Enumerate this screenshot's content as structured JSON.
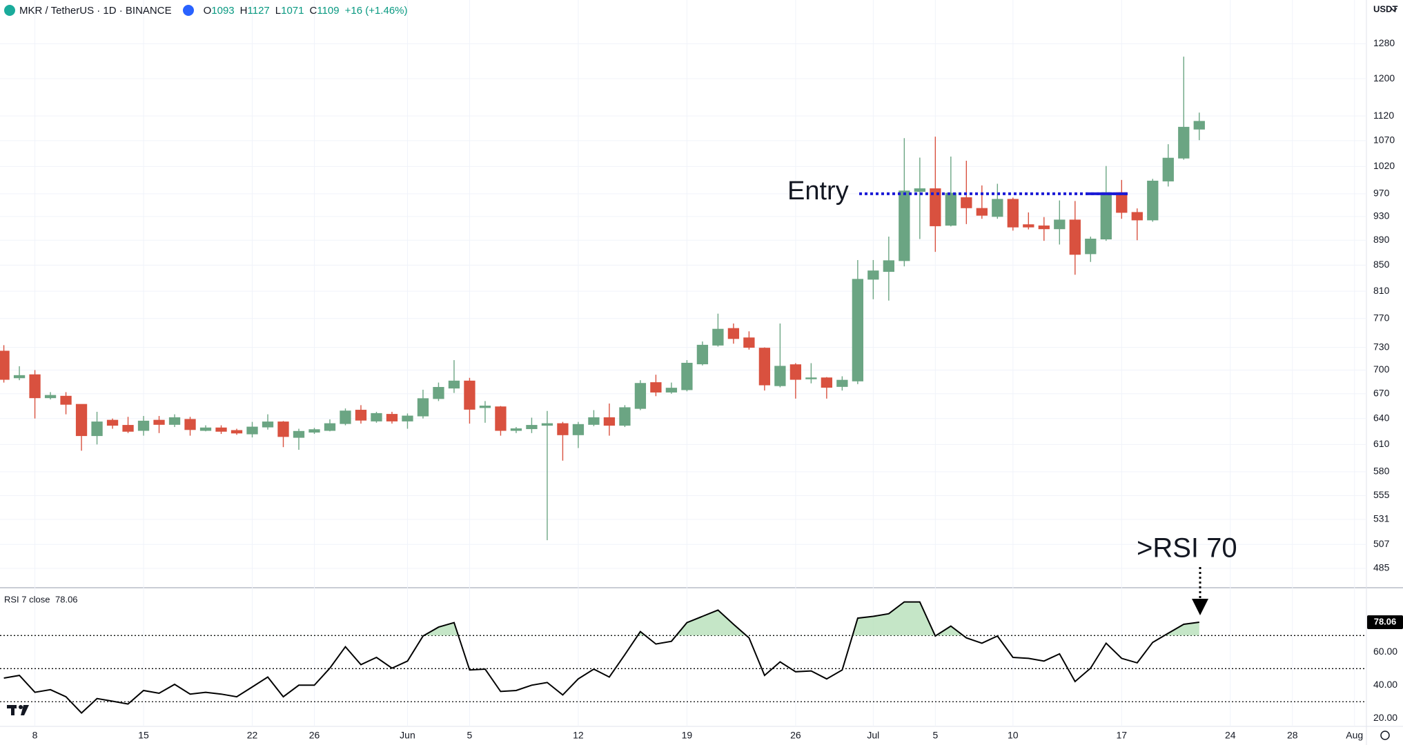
{
  "header": {
    "ohlc_labels": [
      "O",
      "H",
      "L",
      "C"
    ],
    "change": "+16 (+1.46%)",
    "currency": "USDT"
  },
  "chart_data": [
    {
      "type": "candlestick",
      "title": "MKR / TetherUS · 1D · BINANCE",
      "log": true,
      "grid": true,
      "up_color": "#6ba583",
      "down_color": "#d9513f",
      "categories": [
        null,
        null,
        "8",
        null,
        null,
        null,
        null,
        null,
        null,
        "15",
        null,
        null,
        null,
        null,
        null,
        null,
        "22",
        null,
        null,
        null,
        "26",
        null,
        null,
        null,
        null,
        null,
        "Jun",
        null,
        null,
        null,
        "5",
        null,
        null,
        null,
        null,
        null,
        null,
        "12",
        null,
        null,
        null,
        null,
        null,
        null,
        "19",
        null,
        null,
        null,
        null,
        null,
        null,
        "26",
        null,
        null,
        null,
        null,
        "Jul",
        null,
        null,
        null,
        "5",
        null,
        null,
        null,
        null,
        "10",
        null,
        null,
        null,
        null,
        null,
        null,
        "17",
        null,
        null,
        null,
        null,
        null,
        null,
        "24",
        null,
        null,
        null,
        "28",
        null,
        null,
        null,
        "Aug",
        null
      ],
      "open": [
        725,
        690,
        694,
        665,
        667,
        657,
        620,
        638,
        632,
        626,
        638,
        633,
        639,
        626,
        629,
        626,
        622,
        630,
        636,
        618,
        624,
        626,
        634,
        650,
        637,
        645,
        637,
        643,
        664,
        677,
        686,
        653,
        654,
        626,
        628,
        632,
        634,
        621,
        633,
        641,
        632,
        652,
        684,
        672,
        675,
        708,
        733,
        756,
        743,
        729,
        680,
        707,
        689,
        690,
        679,
        686,
        828,
        840,
        857,
        974,
        979,
        915,
        963,
        944,
        930,
        960,
        916,
        914,
        909,
        924,
        868,
        892,
        972,
        937,
        924,
        993,
        1036,
        1093,
        null,
        null,
        null,
        null,
        null,
        null,
        null,
        null,
        null,
        null,
        null
      ],
      "high": [
        733,
        705,
        700,
        672,
        672,
        657,
        648,
        640,
        642,
        643,
        643,
        645,
        642,
        632,
        632,
        628,
        636,
        645,
        637,
        628,
        629,
        639,
        652,
        656,
        648,
        648,
        646,
        675,
        684,
        713,
        690,
        661,
        655,
        630,
        641,
        649,
        636,
        636,
        650,
        658,
        656,
        687,
        694,
        684,
        713,
        738,
        777,
        763,
        752,
        730,
        763,
        709,
        709,
        691,
        692,
        858,
        858,
        896,
        1075,
        1037,
        1078,
        1039,
        1031,
        985,
        988,
        963,
        937,
        929,
        958,
        957,
        896,
        1021,
        995,
        944,
        997,
        1063,
        1250,
        1127,
        null,
        null,
        null,
        null,
        null,
        null,
        null,
        null,
        null,
        null,
        null
      ],
      "low": [
        684,
        687,
        640,
        663,
        645,
        603,
        610,
        628,
        623,
        620,
        623,
        630,
        620,
        625,
        622,
        621,
        618,
        627,
        607,
        604,
        622,
        625,
        632,
        634,
        635,
        634,
        628,
        640,
        661,
        671,
        634,
        635,
        620,
        623,
        623,
        511,
        592,
        606,
        631,
        620,
        630,
        650,
        667,
        670,
        673,
        706,
        731,
        735,
        727,
        674,
        678,
        664,
        683,
        664,
        674,
        682,
        798,
        796,
        848,
        892,
        871,
        913,
        917,
        926,
        926,
        906,
        908,
        889,
        883,
        835,
        855,
        889,
        926,
        890,
        921,
        983,
        1033,
        1071,
        null,
        null,
        null,
        null,
        null,
        null,
        null,
        null,
        null,
        null,
        null
      ],
      "close": [
        688,
        693,
        665,
        668,
        657,
        620,
        636,
        632,
        625,
        637,
        633,
        641,
        627,
        629,
        625,
        623,
        630,
        636,
        619,
        625,
        627,
        634,
        649,
        638,
        646,
        637,
        643,
        664,
        678,
        686,
        651,
        655,
        626,
        628,
        632,
        634,
        621,
        633,
        641,
        632,
        653,
        683,
        672,
        677,
        709,
        733,
        755,
        742,
        730,
        681,
        705,
        688,
        690,
        678,
        687,
        828,
        841,
        857,
        975,
        979,
        914,
        971,
        945,
        932,
        960,
        912,
        912,
        909,
        924,
        867,
        892,
        972,
        937,
        924,
        993,
        1036,
        1097,
        1109,
        null,
        null,
        null,
        null,
        null,
        null,
        null,
        null,
        null,
        null,
        null
      ],
      "ylim": [
        468,
        1388
      ],
      "yticks": [
        485,
        507,
        531,
        555,
        580,
        610,
        640,
        670,
        700,
        730,
        770,
        810,
        850,
        890,
        930,
        970,
        1020,
        1070,
        1120,
        1200,
        1280
      ],
      "annotations": [
        {
          "text": "Entry",
          "value": 970,
          "color": "#1a1ad6"
        }
      ]
    },
    {
      "type": "line",
      "title": "RSI 7 close",
      "color": "#000000",
      "fill_color": "#b7e0b9",
      "values": [
        44.3,
        45.9,
        35.7,
        37.3,
        33.0,
        23.2,
        31.9,
        30.3,
        28.6,
        36.8,
        35.1,
        40.5,
        34.6,
        35.7,
        34.6,
        33.0,
        38.9,
        44.9,
        33.0,
        40.0,
        40.0,
        50.3,
        63.2,
        52.4,
        56.8,
        50.3,
        54.6,
        69.7,
        75.1,
        77.8,
        49.2,
        49.7,
        36.2,
        36.8,
        40.0,
        41.6,
        34.1,
        43.8,
        49.7,
        44.9,
        58.4,
        72.4,
        64.9,
        66.5,
        77.8,
        81.6,
        85.4,
        76.8,
        68.6,
        45.9,
        54.1,
        48.1,
        48.6,
        43.8,
        49.2,
        80.5,
        81.6,
        83.2,
        90.3,
        90.3,
        69.7,
        75.7,
        68.6,
        65.4,
        69.7,
        56.8,
        56.2,
        54.6,
        58.9,
        42.2,
        50.3,
        65.4,
        56.2,
        53.5,
        65.9,
        71.4,
        76.8,
        78.06,
        null,
        null,
        null,
        null,
        null,
        null,
        null,
        null,
        null,
        null,
        null
      ],
      "ylim": [
        15.1,
        98.9
      ],
      "yticks": [
        {
          "value": 20,
          "label": "20.00"
        },
        {
          "value": 40,
          "label": "40.00"
        },
        {
          "value": 60,
          "label": "60.00"
        }
      ],
      "hlines": [
        30,
        50,
        70
      ],
      "annotations": [
        {
          "text": ">RSI 70"
        }
      ]
    }
  ]
}
